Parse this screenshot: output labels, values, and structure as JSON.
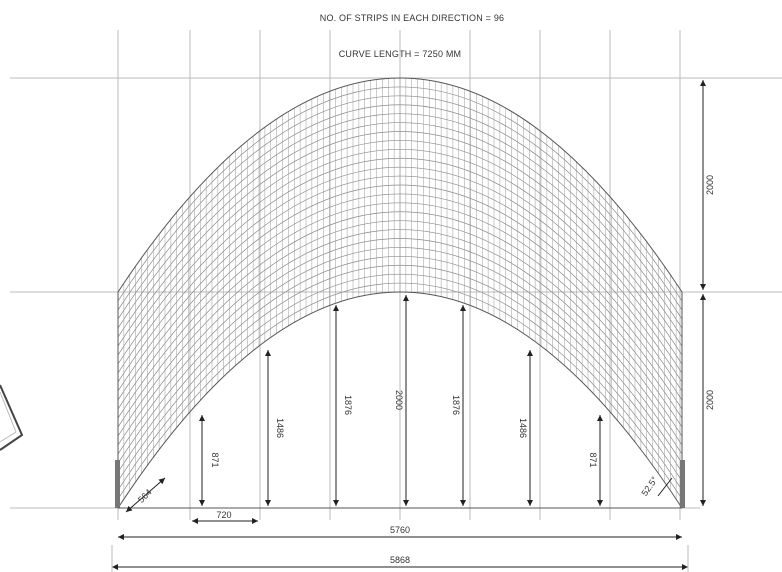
{
  "header": {
    "strips_label": "NO. OF STRIPS IN EACH DIRECTION = 96",
    "curve_label": "CURVE LENGTH = 7250 MM"
  },
  "dimensions": {
    "height_upper": "2000",
    "height_lower": "2000",
    "heights": [
      "871",
      "1486",
      "1876",
      "2000",
      "1876",
      "1486",
      "871"
    ],
    "spacing": "720",
    "edge_left": "564",
    "edge_right": "52.5°",
    "span_inner": "5760",
    "span_outer": "5868"
  }
}
